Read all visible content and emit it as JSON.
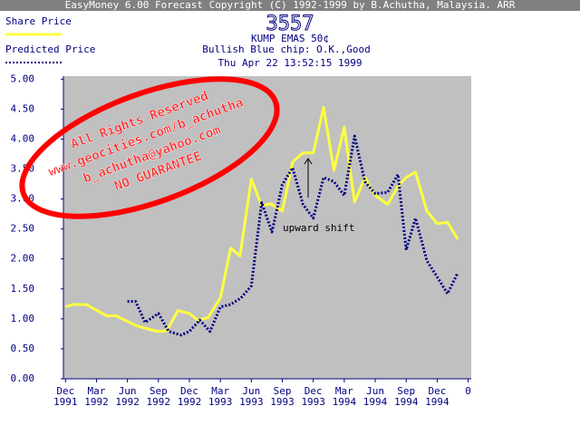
{
  "chart_data": {
    "type": "line",
    "window_title": "EasyMoney 6.00 Forecast Copyright (C) 1992-1999 by B.Achutha, Malaysia. ARR",
    "title": "3557",
    "subtitle_lines": [
      "KUMP EMAS 50¢",
      "Bullish  Blue chip: O.K.,Good",
      "Thu Apr 22 13:52:15 1999"
    ],
    "watermark_lines": [
      "All Rights Reserved",
      "www.geocities.com/b_achutha",
      "b_achutha@yahoo.com",
      "NO GUARANTEE"
    ],
    "annotation": "upward shift",
    "xlim": [
      -0.2,
      39.3
    ],
    "ylim": [
      0,
      5.05
    ],
    "xticks": [
      {
        "value": 0,
        "label": "Dec 1991"
      },
      {
        "value": 3,
        "label": "Mar 1992"
      },
      {
        "value": 6,
        "label": "Jun 1992"
      },
      {
        "value": 9,
        "label": "Sep 1992"
      },
      {
        "value": 12,
        "label": "Dec 1992"
      },
      {
        "value": 15,
        "label": "Mar 1993"
      },
      {
        "value": 18,
        "label": "Jun 1993"
      },
      {
        "value": 21,
        "label": "Sep 1993"
      },
      {
        "value": 24,
        "label": "Dec 1993"
      },
      {
        "value": 27,
        "label": "Mar 1994"
      },
      {
        "value": 30,
        "label": "Jun 1994"
      },
      {
        "value": 33,
        "label": "Sep 1994"
      },
      {
        "value": 36,
        "label": "Dec 1994"
      },
      {
        "value": 39,
        "label": "0"
      }
    ],
    "yticks": [
      {
        "value": 0,
        "label": "0.00"
      },
      {
        "value": 0.5,
        "label": "0.50"
      },
      {
        "value": 1,
        "label": "1.00"
      },
      {
        "value": 1.5,
        "label": "1.50"
      },
      {
        "value": 2,
        "label": "2.00"
      },
      {
        "value": 2.5,
        "label": "2.50"
      },
      {
        "value": 3,
        "label": "3.00"
      },
      {
        "value": 3.5,
        "label": "3.50"
      },
      {
        "value": 4,
        "label": "4.00"
      },
      {
        "value": 4.5,
        "label": "4.50"
      },
      {
        "value": 5,
        "label": "5.00"
      }
    ],
    "series": [
      {
        "name": "Share Price",
        "color": "#ffff40",
        "style": "solid",
        "x": [
          0,
          0.7,
          2,
          4,
          4.9,
          6.8,
          8,
          9,
          9.8,
          10.9,
          12,
          12.8,
          13.8,
          15,
          16,
          16.9,
          18,
          19,
          19.9,
          21,
          22,
          23,
          24,
          25,
          26,
          27,
          28,
          29,
          30,
          31.2,
          32.2,
          33,
          33.9,
          35,
          36,
          37,
          38
        ],
        "values": [
          1.2,
          1.24,
          1.24,
          1.05,
          1.05,
          0.89,
          0.83,
          0.79,
          0.8,
          1.14,
          1.09,
          0.98,
          1.02,
          1.35,
          2.18,
          2.05,
          3.33,
          2.89,
          2.92,
          2.8,
          3.62,
          3.77,
          3.77,
          4.53,
          3.48,
          4.2,
          2.95,
          3.36,
          3.06,
          2.91,
          3.21,
          3.36,
          3.45,
          2.8,
          2.59,
          2.61,
          2.33
        ]
      },
      {
        "name": "Predicted Price",
        "color": "#000080",
        "style": "dotted",
        "x": [
          6,
          6.8,
          7.7,
          9,
          10,
          11.2,
          12,
          13,
          14,
          15,
          16,
          17,
          18,
          19,
          20,
          21,
          22,
          23,
          24,
          25,
          26,
          27,
          28,
          29,
          30,
          31.2,
          32.2,
          33,
          33.9,
          35,
          36,
          37,
          38
        ],
        "values": [
          1.29,
          1.29,
          0.94,
          1.09,
          0.79,
          0.73,
          0.79,
          0.98,
          0.79,
          1.2,
          1.24,
          1.35,
          1.55,
          2.94,
          2.45,
          3.24,
          3.52,
          2.91,
          2.68,
          3.36,
          3.29,
          3.06,
          4.05,
          3.29,
          3.09,
          3.11,
          3.41,
          2.15,
          2.68,
          1.97,
          1.7,
          1.42,
          1.77
        ]
      }
    ]
  }
}
